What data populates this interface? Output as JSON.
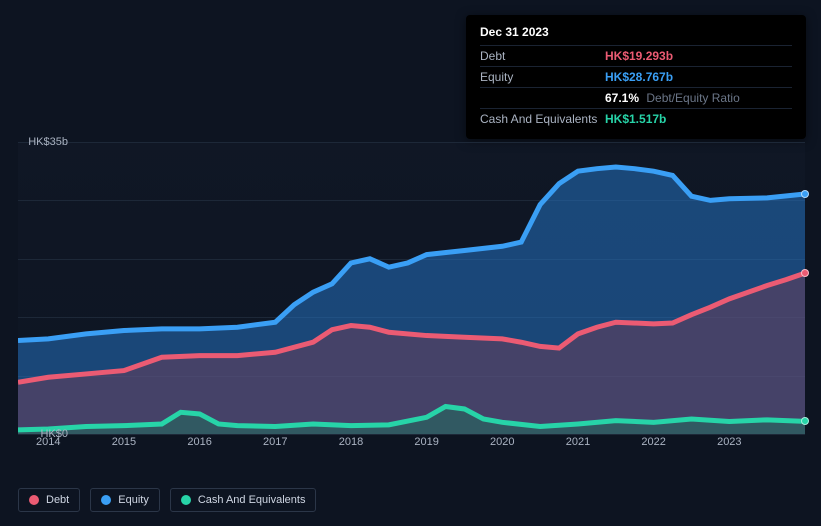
{
  "tooltip": {
    "title": "Dec 31 2023",
    "rows": [
      {
        "label": "Debt",
        "value": "HK$19.293b",
        "color": "#eb5b73"
      },
      {
        "label": "Equity",
        "value": "HK$28.767b",
        "color": "#3a9ff5"
      },
      {
        "label": "",
        "value": "67.1%",
        "extra": "Debt/Equity Ratio",
        "color": "#ffffff"
      },
      {
        "label": "Cash And Equivalents",
        "value": "HK$1.517b",
        "color": "#27d4a8"
      }
    ]
  },
  "chart": {
    "type": "area",
    "background": "#0d1421",
    "grid_color": "#1d2838",
    "ylim": [
      0,
      35
    ],
    "ylabels": [
      {
        "v": 35,
        "text": "HK$35b"
      },
      {
        "v": 0,
        "text": "HK$0"
      }
    ],
    "xlim": [
      2013.6,
      2024.0
    ],
    "xticks": [
      2014,
      2015,
      2016,
      2017,
      2018,
      2019,
      2020,
      2021,
      2022,
      2023
    ],
    "series": [
      {
        "name": "Equity",
        "color": "#2571c0",
        "line_color": "#3a9ff5",
        "fill_opacity": 0.55,
        "points": [
          [
            2013.6,
            11.2
          ],
          [
            2014.0,
            11.4
          ],
          [
            2014.5,
            12.0
          ],
          [
            2015.0,
            12.4
          ],
          [
            2015.5,
            12.6
          ],
          [
            2016.0,
            12.6
          ],
          [
            2016.5,
            12.8
          ],
          [
            2017.0,
            13.4
          ],
          [
            2017.25,
            15.5
          ],
          [
            2017.5,
            17.0
          ],
          [
            2017.75,
            18.0
          ],
          [
            2018.0,
            20.5
          ],
          [
            2018.25,
            21.0
          ],
          [
            2018.5,
            20.0
          ],
          [
            2018.75,
            20.5
          ],
          [
            2019.0,
            21.5
          ],
          [
            2019.5,
            22.0
          ],
          [
            2020.0,
            22.5
          ],
          [
            2020.25,
            23.0
          ],
          [
            2020.5,
            27.5
          ],
          [
            2020.75,
            30.0
          ],
          [
            2021.0,
            31.5
          ],
          [
            2021.25,
            31.8
          ],
          [
            2021.5,
            32.0
          ],
          [
            2021.75,
            31.8
          ],
          [
            2022.0,
            31.5
          ],
          [
            2022.25,
            31.0
          ],
          [
            2022.5,
            28.5
          ],
          [
            2022.75,
            28.0
          ],
          [
            2023.0,
            28.2
          ],
          [
            2023.5,
            28.3
          ],
          [
            2024.0,
            28.77
          ]
        ]
      },
      {
        "name": "Debt",
        "color": "#7a3b55",
        "line_color": "#eb5b73",
        "fill_opacity": 0.45,
        "points": [
          [
            2013.6,
            6.2
          ],
          [
            2014.0,
            6.8
          ],
          [
            2014.5,
            7.2
          ],
          [
            2015.0,
            7.6
          ],
          [
            2015.5,
            9.2
          ],
          [
            2016.0,
            9.4
          ],
          [
            2016.5,
            9.4
          ],
          [
            2017.0,
            9.8
          ],
          [
            2017.5,
            11.0
          ],
          [
            2017.75,
            12.5
          ],
          [
            2018.0,
            13.0
          ],
          [
            2018.25,
            12.8
          ],
          [
            2018.5,
            12.2
          ],
          [
            2019.0,
            11.8
          ],
          [
            2019.5,
            11.6
          ],
          [
            2020.0,
            11.4
          ],
          [
            2020.25,
            11.0
          ],
          [
            2020.5,
            10.5
          ],
          [
            2020.75,
            10.3
          ],
          [
            2021.0,
            12.0
          ],
          [
            2021.25,
            12.8
          ],
          [
            2021.5,
            13.4
          ],
          [
            2022.0,
            13.2
          ],
          [
            2022.25,
            13.3
          ],
          [
            2022.5,
            14.3
          ],
          [
            2022.75,
            15.2
          ],
          [
            2023.0,
            16.2
          ],
          [
            2023.5,
            17.8
          ],
          [
            2023.75,
            18.5
          ],
          [
            2024.0,
            19.29
          ]
        ]
      },
      {
        "name": "Cash And Equivalents",
        "color": "#1e6f5c",
        "line_color": "#27d4a8",
        "fill_opacity": 0.5,
        "points": [
          [
            2013.6,
            0.5
          ],
          [
            2014.0,
            0.6
          ],
          [
            2014.5,
            0.9
          ],
          [
            2015.0,
            1.0
          ],
          [
            2015.5,
            1.2
          ],
          [
            2015.75,
            2.6
          ],
          [
            2016.0,
            2.4
          ],
          [
            2016.25,
            1.2
          ],
          [
            2016.5,
            1.0
          ],
          [
            2017.0,
            0.9
          ],
          [
            2017.5,
            1.2
          ],
          [
            2018.0,
            1.0
          ],
          [
            2018.5,
            1.1
          ],
          [
            2019.0,
            2.0
          ],
          [
            2019.25,
            3.3
          ],
          [
            2019.5,
            3.0
          ],
          [
            2019.75,
            1.8
          ],
          [
            2020.0,
            1.4
          ],
          [
            2020.5,
            0.9
          ],
          [
            2021.0,
            1.2
          ],
          [
            2021.5,
            1.6
          ],
          [
            2022.0,
            1.4
          ],
          [
            2022.5,
            1.8
          ],
          [
            2023.0,
            1.5
          ],
          [
            2023.5,
            1.7
          ],
          [
            2024.0,
            1.52
          ]
        ]
      }
    ],
    "markers": [
      {
        "x": 2024.0,
        "y": 28.77,
        "color": "#3a9ff5"
      },
      {
        "x": 2024.0,
        "y": 19.29,
        "color": "#eb5b73"
      },
      {
        "x": 2024.0,
        "y": 1.52,
        "color": "#27d4a8"
      }
    ]
  },
  "legend": [
    {
      "label": "Debt",
      "color": "#eb5b73"
    },
    {
      "label": "Equity",
      "color": "#3a9ff5"
    },
    {
      "label": "Cash And Equivalents",
      "color": "#27d4a8"
    }
  ]
}
